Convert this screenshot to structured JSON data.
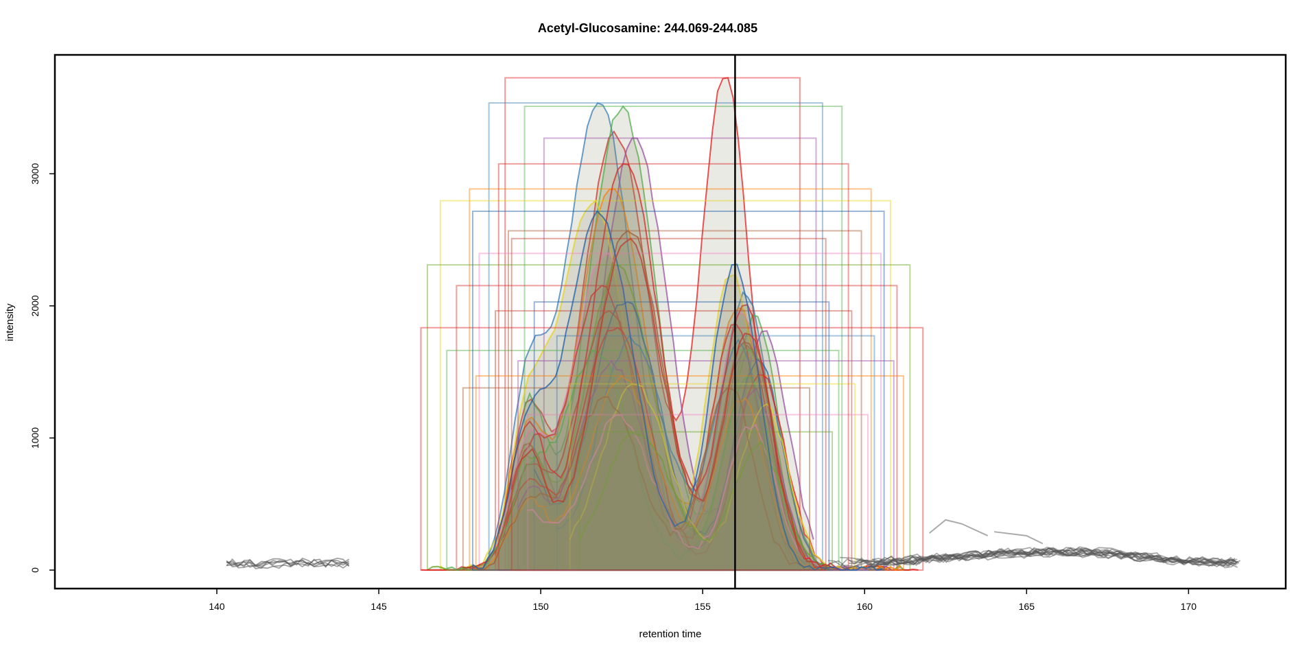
{
  "chart_data": {
    "type": "line",
    "title": "Acetyl-Glucosamine: 244.069-244.085",
    "xlabel": "retention time",
    "ylabel": "intensity",
    "xlim": [
      135,
      173
    ],
    "ylim": [
      -140,
      3900
    ],
    "x_ticks": [
      140,
      145,
      150,
      155,
      160,
      165,
      170
    ],
    "y_ticks": [
      0,
      1000,
      2000,
      3000
    ],
    "grid": false,
    "legend": "none",
    "vertical_marker": 156.0,
    "palette": [
      "#e41a1c",
      "#377eb8",
      "#4daf4a",
      "#984ea3",
      "#ff7f00",
      "#e6d41c",
      "#a65628",
      "#f781bf",
      "#66a61e",
      "#d62728",
      "#1f5fa8",
      "#c0392b"
    ],
    "shading_color": "#8b8b6a",
    "background_trace_color": "#555555",
    "sample_peaks": [
      {
        "p1": 152.3,
        "p2": 155.7,
        "h1": 3300,
        "h2": 3750,
        "lo": 148.9,
        "hi": 158.0
      },
      {
        "p1": 151.8,
        "p2": 156.3,
        "h1": 3550,
        "h2": 2100,
        "lo": 148.4,
        "hi": 158.7
      },
      {
        "p1": 152.5,
        "p2": 156.6,
        "h1": 3500,
        "h2": 1900,
        "lo": 149.5,
        "hi": 159.3
      },
      {
        "p1": 152.9,
        "p2": 156.9,
        "h1": 3250,
        "h2": 1800,
        "lo": 150.1,
        "hi": 158.5
      },
      {
        "p1": 152.2,
        "p2": 156.1,
        "h1": 2900,
        "h2": 2000,
        "lo": 147.8,
        "hi": 160.2
      },
      {
        "p1": 151.6,
        "p2": 155.9,
        "h1": 2800,
        "h2": 2250,
        "lo": 146.9,
        "hi": 160.8
      },
      {
        "p1": 152.7,
        "p2": 156.4,
        "h1": 2600,
        "h2": 1700,
        "lo": 149.0,
        "hi": 159.9
      },
      {
        "p1": 152.0,
        "p2": 156.2,
        "h1": 2400,
        "h2": 1950,
        "lo": 148.1,
        "hi": 160.5
      },
      {
        "p1": 152.4,
        "p2": 156.5,
        "h1": 2300,
        "h2": 1650,
        "lo": 146.5,
        "hi": 161.4
      },
      {
        "p1": 151.9,
        "p2": 156.0,
        "h1": 2150,
        "h2": 1850,
        "lo": 147.4,
        "hi": 161.0
      },
      {
        "p1": 152.6,
        "p2": 156.7,
        "h1": 2050,
        "h2": 1600,
        "lo": 149.8,
        "hi": 158.9
      },
      {
        "p1": 152.1,
        "p2": 156.3,
        "h1": 1950,
        "h2": 1750,
        "lo": 148.6,
        "hi": 159.6
      },
      {
        "p1": 152.3,
        "p2": 156.8,
        "h1": 1850,
        "h2": 1500,
        "lo": 146.3,
        "hi": 161.8
      },
      {
        "p1": 152.8,
        "p2": 156.1,
        "h1": 1750,
        "h2": 1700,
        "lo": 150.5,
        "hi": 160.3
      },
      {
        "p1": 151.7,
        "p2": 156.4,
        "h1": 1650,
        "h2": 1450,
        "lo": 147.1,
        "hi": 159.2
      },
      {
        "p1": 152.2,
        "p2": 156.6,
        "h1": 1550,
        "h2": 1350,
        "lo": 149.3,
        "hi": 160.9
      },
      {
        "p1": 152.5,
        "p2": 156.2,
        "h1": 1450,
        "h2": 1300,
        "lo": 148.0,
        "hi": 161.2
      },
      {
        "p1": 152.9,
        "p2": 156.9,
        "h1": 1400,
        "h2": 1250,
        "lo": 150.9,
        "hi": 159.7
      },
      {
        "p1": 152.0,
        "p2": 155.8,
        "h1": 1300,
        "h2": 1400,
        "lo": 147.6,
        "hi": 158.3
      },
      {
        "p1": 152.4,
        "p2": 156.5,
        "h1": 1150,
        "h2": 1100,
        "lo": 149.6,
        "hi": 160.1
      },
      {
        "p1": 153.0,
        "p2": 156.7,
        "h1": 1050,
        "h2": 950,
        "lo": 151.2,
        "hi": 159.0
      },
      {
        "p1": 152.6,
        "p2": 156.3,
        "h1": 3100,
        "h2": 2000,
        "lo": 148.7,
        "hi": 159.5
      },
      {
        "p1": 151.8,
        "p2": 156.0,
        "h1": 2700,
        "h2": 2300,
        "lo": 147.9,
        "hi": 160.6
      },
      {
        "p1": 152.7,
        "p2": 156.4,
        "h1": 2500,
        "h2": 1800,
        "lo": 149.1,
        "hi": 158.8
      }
    ]
  }
}
